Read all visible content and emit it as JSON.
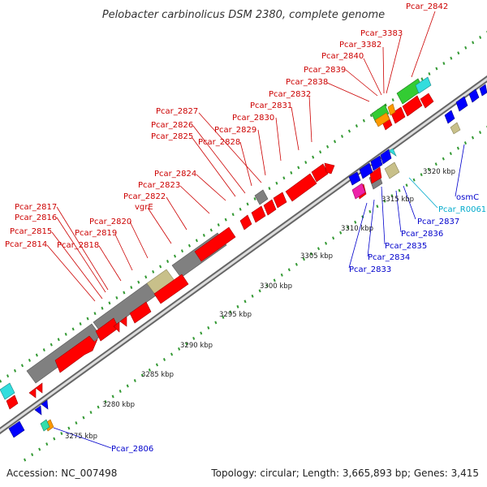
{
  "title": "Pelobacter carbinolicus DSM 2380, complete genome",
  "footer": {
    "accession": "Accession: NC_007498",
    "info": "Topology: circular; Length: 3,665,893 bp; Genes: 3,415"
  },
  "scale_labels": [
    "3275 kbp",
    "3280 kbp",
    "3285 kbp",
    "3290 kbp",
    "3295 kbp",
    "3300 kbp",
    "3305 kbp",
    "3310 kbp",
    "3315 kbp",
    "3320 kbp"
  ],
  "colors": {
    "red_label": "#cc0000",
    "blue_label": "#0000cc",
    "cyan_label": "#00aacc",
    "cds_red": "#ff0000",
    "cds_blue": "#0000ff",
    "cds_gray": "#808080",
    "cds_khaki": "#c8c08a",
    "cds_green": "#33cc33",
    "cds_cyan": "#33dddd",
    "cds_orange": "#ff9900",
    "cds_magenta": "#ee22aa",
    "tick_green": "#339933"
  },
  "top_labels": [
    {
      "text": "Pcar_2842"
    },
    {
      "text": "Pcar_3383"
    },
    {
      "text": "Pcar_3382"
    },
    {
      "text": "Pcar_2840"
    },
    {
      "text": "Pcar_2839"
    },
    {
      "text": "Pcar_2838"
    },
    {
      "text": "Pcar_2832"
    },
    {
      "text": "Pcar_2831"
    },
    {
      "text": "Pcar_2830"
    },
    {
      "text": "Pcar_2827"
    },
    {
      "text": "Pcar_2829"
    },
    {
      "text": "Pcar_2826"
    },
    {
      "text": "Pcar_2828"
    },
    {
      "text": "Pcar_2825"
    },
    {
      "text": "Pcar_2824"
    },
    {
      "text": "Pcar_2823"
    },
    {
      "text": "Pcar_2822"
    },
    {
      "text": "vgrE"
    },
    {
      "text": "Pcar_2817"
    },
    {
      "text": "Pcar_2816"
    },
    {
      "text": "Pcar_2820"
    },
    {
      "text": "Pcar_2815"
    },
    {
      "text": "Pcar_2819"
    },
    {
      "text": "Pcar_2814"
    },
    {
      "text": "Pcar_2818"
    }
  ],
  "bottom_labels": [
    {
      "text": "Pcar_2806"
    },
    {
      "text": "osmC"
    },
    {
      "text": "Pcar_R0061"
    },
    {
      "text": "Pcar_2837"
    },
    {
      "text": "Pcar_2836"
    },
    {
      "text": "Pcar_2835"
    },
    {
      "text": "Pcar_2834"
    },
    {
      "text": "Pcar_2833"
    }
  ]
}
